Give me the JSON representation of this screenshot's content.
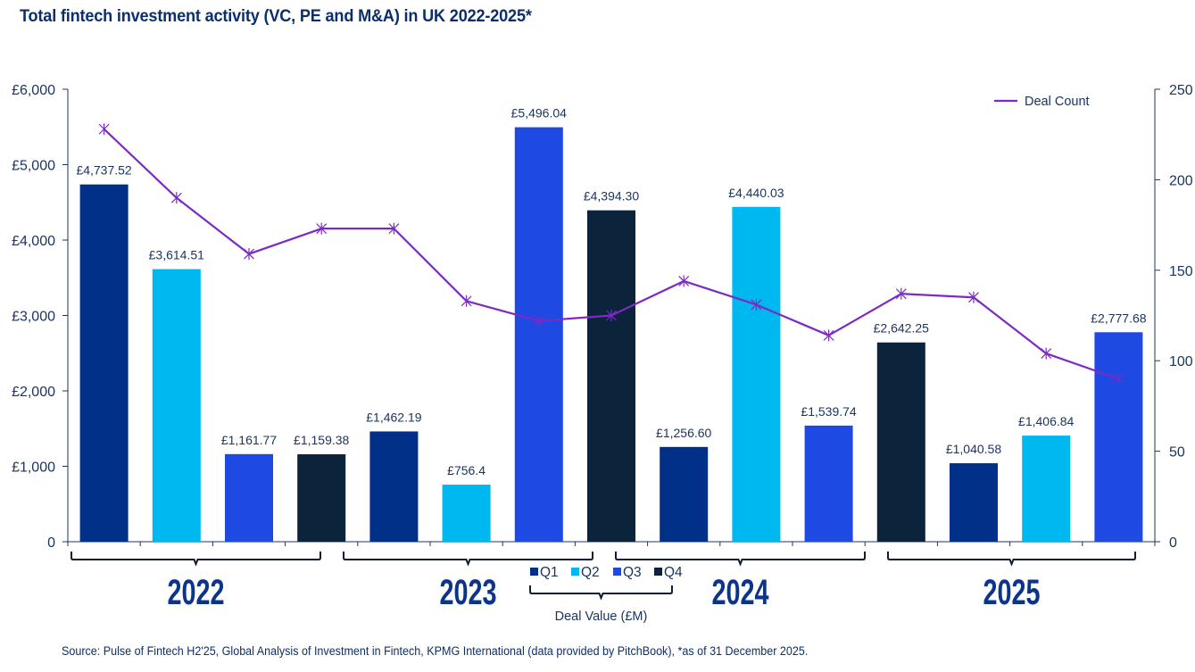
{
  "title": "Total fintech investment activity (VC, PE and M&A) in UK 2022-2025*",
  "source": "Source: Pulse of Fintech H2'25, Global Analysis of Investment in Fintech, KPMG International  (data provided by PitchBook), *as of 31 December 2025.",
  "chart_data": {
    "type": "bar",
    "combo": "bar + line (dual axis)",
    "title": "Total fintech investment activity (VC, PE and M&A) in UK 2022-2025*",
    "categories": [
      "2022 Q1",
      "2022 Q2",
      "2022 Q3",
      "2022 Q4",
      "2023 Q1",
      "2023 Q2",
      "2023 Q3",
      "2023 Q4",
      "2024 Q1",
      "2024 Q2",
      "2024 Q3",
      "2024 Q4",
      "2025 Q1",
      "2025 Q2",
      "2025 Q3"
    ],
    "quarters": [
      "Q1",
      "Q2",
      "Q3",
      "Q4",
      "Q1",
      "Q2",
      "Q3",
      "Q4",
      "Q1",
      "Q2",
      "Q3",
      "Q4",
      "Q1",
      "Q2",
      "Q3"
    ],
    "series": [
      {
        "name": "Deal Value (£M)",
        "type": "bar",
        "axis": "left",
        "values": [
          4737.52,
          3614.51,
          1161.77,
          1159.38,
          1462.19,
          756.4,
          5496.04,
          4394.3,
          1256.6,
          4440.03,
          1539.74,
          2642.25,
          1040.58,
          1406.84,
          2777.68
        ],
        "labels": [
          "£4,737.52",
          "£3,614.51",
          "£1,161.77",
          "£1,159.38",
          "£1,462.19",
          "£756.4",
          "£5,496.04",
          "£4,394.30",
          "£1,256.60",
          "£4,440.03",
          "£1,539.74",
          "£2,642.25",
          "£1,040.58",
          "£1,406.84",
          "£2,777.68"
        ]
      },
      {
        "name": "Deal Count",
        "type": "line",
        "axis": "right",
        "values": [
          228,
          190,
          159,
          173,
          173,
          133,
          122,
          125,
          144,
          131,
          114,
          137,
          135,
          104,
          90
        ]
      }
    ],
    "left_axis": {
      "ylim": [
        0,
        6000
      ],
      "ticks": [
        0,
        1000,
        2000,
        3000,
        4000,
        5000,
        6000
      ],
      "tick_labels": [
        "0",
        "£1,000",
        "£2,000",
        "£3,000",
        "£4,000",
        "£5,000",
        "£6,000"
      ]
    },
    "right_axis": {
      "ylim": [
        0,
        250
      ],
      "ticks": [
        0,
        50,
        100,
        150,
        200,
        250
      ],
      "tick_labels": [
        "0",
        "50",
        "100",
        "150",
        "200",
        "250"
      ]
    },
    "year_groups": [
      {
        "label": "2022"
      },
      {
        "label": "2023"
      },
      {
        "label": "2024"
      },
      {
        "label": "2025"
      }
    ],
    "xlabel": "Deal Value (£M)",
    "legend": {
      "bar_entries": [
        {
          "label": "Q1",
          "color": "#003087"
        },
        {
          "label": "Q2",
          "color": "#00b8f0"
        },
        {
          "label": "Q3",
          "color": "#1e49e2"
        },
        {
          "label": "Q4",
          "color": "#0c233c"
        }
      ],
      "line_entry": {
        "label": "Deal Count",
        "color": "#7b2bc4"
      },
      "line_placement": "top-right",
      "bar_placement": "bottom-center"
    },
    "grid": false
  },
  "colors": {
    "Q1": "#003087",
    "Q2": "#00b8f0",
    "Q3": "#1e49e2",
    "Q4": "#0c233c",
    "line": "#7b2bc4",
    "axis": "#1b3560",
    "year_label": "#0c3488"
  }
}
